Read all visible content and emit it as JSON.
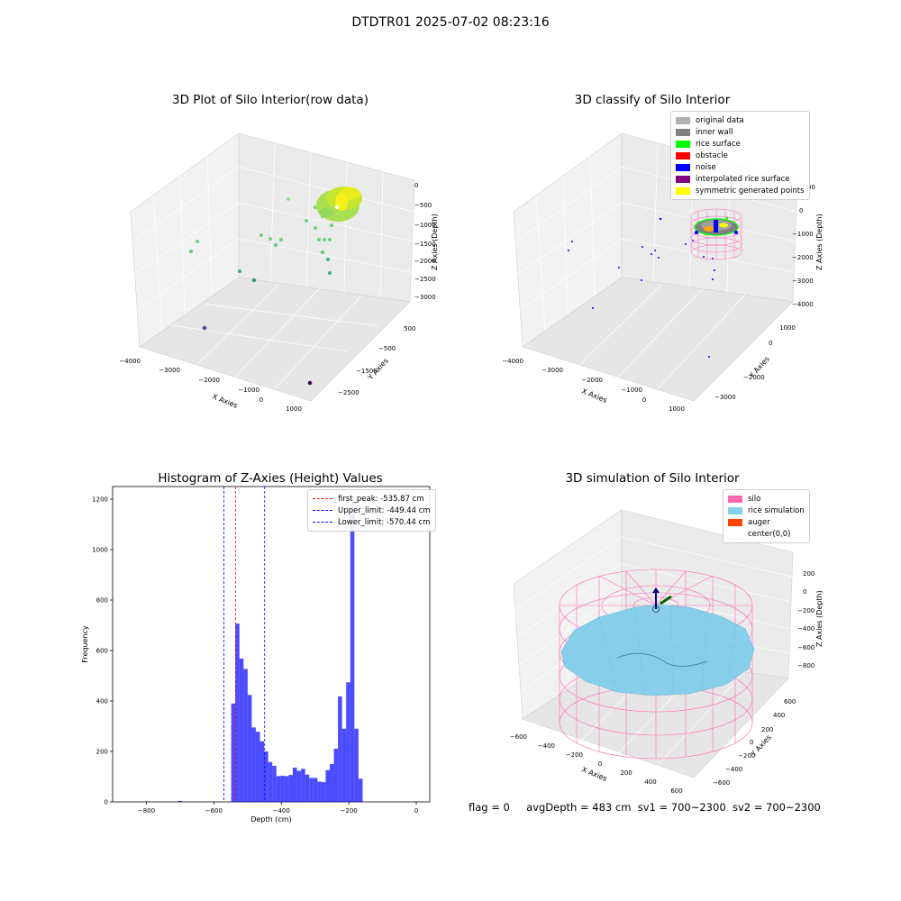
{
  "suptitle": "DTDTR01 2025-07-02 08:23:16",
  "panels": {
    "raw": {
      "title": "3D Plot of Silo Interior(row data)",
      "xlabel": "X Axies",
      "ylabel": "Y Axies",
      "zlabel": "Z Axies (Depth)",
      "xticks": [
        "−4000",
        "−3000",
        "−2000",
        "−1000",
        "0",
        "1000"
      ],
      "yticks": [
        "500",
        "0",
        "−500",
        "−1000",
        "−1500",
        "−2000",
        "−2500",
        "−3000"
      ],
      "zticks": [
        "0",
        "−500",
        "−1000",
        "−1500",
        "−2000",
        "−2500",
        "−3000"
      ]
    },
    "classify": {
      "title": "3D classify of Silo Interior",
      "xlabel": "X Axies",
      "ylabel": "Y Axies",
      "zlabel": "Z Axies (Depth)",
      "xticks": [
        "−4000",
        "−3000",
        "−2000",
        "−1000",
        "0",
        "1000"
      ],
      "yticks": [
        "1000",
        "0",
        "−1000",
        "−2000",
        "−3000"
      ],
      "zticks": [
        "1000",
        "0",
        "−1000",
        "−2000",
        "−3000",
        "−4000"
      ],
      "legend": [
        {
          "label": "original data",
          "color": "#b0b0b0"
        },
        {
          "label": "inner wall",
          "color": "#808080"
        },
        {
          "label": "rice surface",
          "color": "#00ff00"
        },
        {
          "label": "obstacle",
          "color": "#ff0000"
        },
        {
          "label": "noise",
          "color": "#0000ff"
        },
        {
          "label": "interpolated rice surface",
          "color": "#800080"
        },
        {
          "label": "symmetric generated points",
          "color": "#ffff00"
        }
      ]
    },
    "simulation": {
      "title": "3D simulation of Silo Interior",
      "xlabel": "X Axies",
      "ylabel": "Y Axies",
      "zlabel": "Z Axies (Depth)",
      "xticks": [
        "−600",
        "−400",
        "−200",
        "0",
        "200",
        "400",
        "600"
      ],
      "yticks": [
        "600",
        "400",
        "200",
        "0",
        "−200",
        "−400",
        "−600"
      ],
      "zticks": [
        "200",
        "0",
        "−200",
        "−400",
        "−600",
        "−800"
      ],
      "legend": [
        {
          "label": "silo",
          "color": "#ff69b4"
        },
        {
          "label": "rice simulation",
          "color": "#87ceeb"
        },
        {
          "label": "auger",
          "color": "#ff4500"
        },
        {
          "label": "center(0,0)",
          "color": "#ffffff"
        }
      ]
    }
  },
  "chart_data": [
    {
      "type": "bar",
      "title": "Histogram of Z-Axies (Height) Values",
      "xlabel": "Depth (cm)",
      "ylabel": "Frequency",
      "xlim": [
        -900,
        40
      ],
      "ylim": [
        0,
        1250
      ],
      "xticks": [
        -800,
        -600,
        -400,
        -200,
        0
      ],
      "yticks": [
        0,
        200,
        400,
        600,
        800,
        1000,
        1200
      ],
      "bar_color": "#0000ff",
      "bin_width": 12.17,
      "bins": [
        {
          "x": -706.7,
          "value": 4
        },
        {
          "x": -548.5,
          "value": 390
        },
        {
          "x": -536.3,
          "value": 707
        },
        {
          "x": -524.2,
          "value": 568
        },
        {
          "x": -512.0,
          "value": 527
        },
        {
          "x": -499.8,
          "value": 424
        },
        {
          "x": -487.7,
          "value": 295
        },
        {
          "x": -475.5,
          "value": 278
        },
        {
          "x": -463.3,
          "value": 240
        },
        {
          "x": -451.2,
          "value": 200
        },
        {
          "x": -439.0,
          "value": 158
        },
        {
          "x": -426.8,
          "value": 143
        },
        {
          "x": -414.6,
          "value": 102
        },
        {
          "x": -402.5,
          "value": 104
        },
        {
          "x": -390.3,
          "value": 102
        },
        {
          "x": -378.1,
          "value": 107
        },
        {
          "x": -366.0,
          "value": 136
        },
        {
          "x": -353.8,
          "value": 123
        },
        {
          "x": -341.6,
          "value": 131
        },
        {
          "x": -329.5,
          "value": 108
        },
        {
          "x": -317.3,
          "value": 95
        },
        {
          "x": -305.1,
          "value": 95
        },
        {
          "x": -292.9,
          "value": 80
        },
        {
          "x": -280.8,
          "value": 78
        },
        {
          "x": -268.6,
          "value": 126
        },
        {
          "x": -256.4,
          "value": 150
        },
        {
          "x": -244.3,
          "value": 211
        },
        {
          "x": -232.1,
          "value": 418
        },
        {
          "x": -219.9,
          "value": 290
        },
        {
          "x": -207.8,
          "value": 474
        },
        {
          "x": -195.6,
          "value": 1180
        },
        {
          "x": -183.4,
          "value": 290
        },
        {
          "x": -171.2,
          "value": 92
        }
      ],
      "lines": [
        {
          "label": "first_peak: -535.87 cm",
          "x": -535.87,
          "color": "#ff0000"
        },
        {
          "label": "Upper_limit: -449.44 cm",
          "x": -449.44,
          "color": "#0000ff"
        },
        {
          "label": "Lower_limit: -570.44 cm",
          "x": -570.44,
          "color": "#0000ff"
        }
      ]
    }
  ],
  "status": {
    "flag": "flag = 0",
    "avg": "avgDepth = 483 cm",
    "sv1": "sv1 = 700~2300",
    "sv2": "sv2 = 700~2300"
  }
}
